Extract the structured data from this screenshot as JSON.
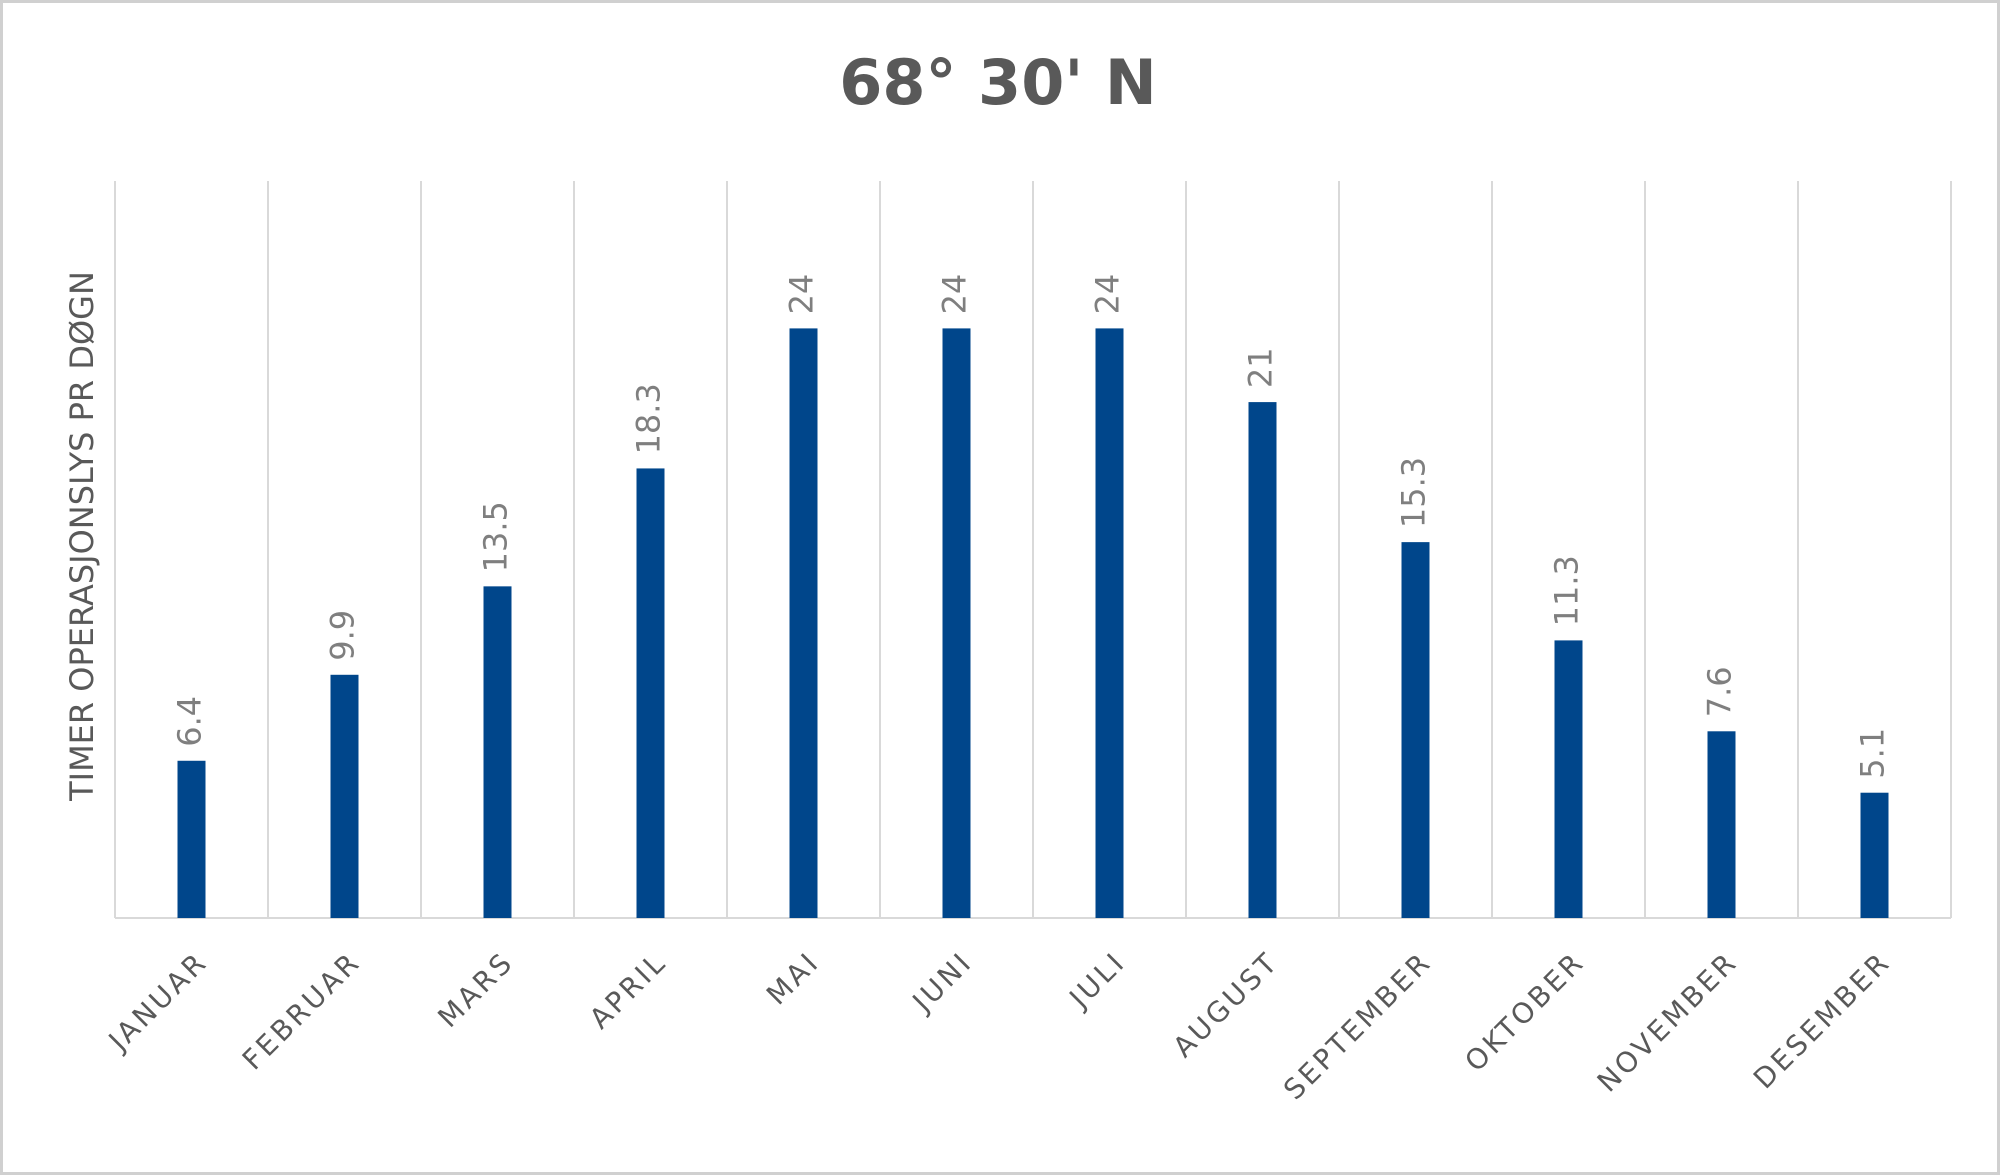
{
  "chart_data": {
    "type": "bar",
    "title": "68° 30' N",
    "y_label": "TIMER OPERASJONSLYS PR DØGN",
    "categories": [
      "JANUAR",
      "FEBRUAR",
      "MARS",
      "APRIL",
      "MAI",
      "JUNI",
      "JULI",
      "AUGUST",
      "SEPTEMBER",
      "OKTOBER",
      "NOVEMBER",
      "DESEMBER"
    ],
    "values": [
      6.4,
      9.9,
      13.5,
      18.3,
      24,
      24,
      24,
      21,
      15.3,
      11.3,
      7.6,
      5.1
    ],
    "color": "#00468b",
    "ylim": [
      0,
      30
    ]
  }
}
